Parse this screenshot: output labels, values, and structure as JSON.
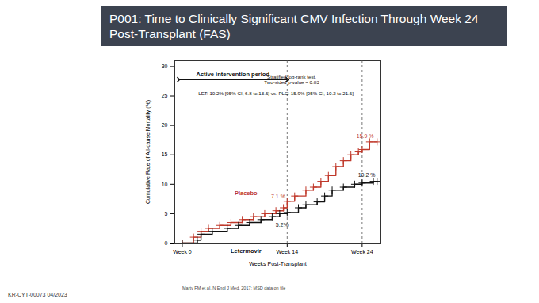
{
  "chart_data": {
    "type": "line",
    "title": "P001: Time to Clinically Significant CMV Infection Through Week 24 Post-Transplant (FAS)",
    "x_label": "Weeks Post-Transplant",
    "y_label": "Cumulative Rate of All-cause Mortality (%)",
    "xlim": [
      -1,
      26.5
    ],
    "xticks": [
      {
        "value": 0,
        "label": "Week 0"
      },
      {
        "value": 14,
        "label": "Week 14"
      },
      {
        "value": 24,
        "label": "Week 24"
      }
    ],
    "ylim": [
      0,
      31
    ],
    "yticks": [
      0,
      5,
      10,
      15,
      20,
      25,
      30
    ],
    "grid": false,
    "line_style": "step",
    "marker": "plus",
    "vlines": [
      14,
      24
    ],
    "period": {
      "text": "Active intervention period",
      "x_range": [
        -0.5,
        14
      ],
      "y": 27.8
    },
    "series": [
      {
        "name": "Placebo",
        "color": "#c0392b",
        "x": [
          0,
          1.5,
          2.5,
          3.5,
          5,
          6.5,
          8,
          9.5,
          11,
          12.5,
          13.5,
          14,
          15,
          16.5,
          17.5,
          18.5,
          19.5,
          20.5,
          21.5,
          22.5,
          23.5,
          24,
          25,
          26
        ],
        "values": [
          0,
          1,
          2,
          2.5,
          3,
          3.5,
          4,
          4.5,
          5,
          5.5,
          6,
          7.1,
          8,
          9,
          9.5,
          10.5,
          11.5,
          13,
          14,
          15,
          15.5,
          15.9,
          17.2,
          17.2
        ]
      },
      {
        "name": "Letermovir",
        "color": "#111111",
        "x": [
          0,
          2,
          2.5,
          4,
          6,
          7.5,
          9,
          10.5,
          12,
          13,
          14,
          15.5,
          16.5,
          18,
          19,
          20,
          21.5,
          23,
          24,
          25.5,
          26
        ],
        "values": [
          0,
          0.5,
          1.5,
          2,
          2.5,
          3,
          3.5,
          4,
          4.5,
          5,
          5.2,
          6,
          6.5,
          7,
          8,
          9,
          9.5,
          10,
          10.2,
          10.5,
          10.5
        ]
      }
    ],
    "series_labels": [
      {
        "series": "Placebo",
        "x": 8.5,
        "y": 9.5
      },
      {
        "series": "Letermovir",
        "x": 8.5,
        "y": -0.3
      }
    ],
    "annotations": [
      {
        "text": "Stratified log-rank test,\nTwo-sided p-value = 0.03",
        "x": 14.6,
        "y": 27.8,
        "series": null
      },
      {
        "text": "LET: 10.2% [95% CI, 6.8 to 13.6] vs. PLC: 15.9% [95% CI, 10.2 to 21.6]",
        "x": 12.5,
        "y": 25.4,
        "series": null
      },
      {
        "text": "7.1 %",
        "x": 12.8,
        "y": 8.0,
        "series": "Placebo"
      },
      {
        "text": "5.2%",
        "x": 13.3,
        "y": 3.1,
        "series": "Letermovir"
      },
      {
        "text": "15.9 %",
        "x": 24.4,
        "y": 18.2,
        "series": "Placebo"
      },
      {
        "text": "10.2 %",
        "x": 24.6,
        "y": 11.6,
        "series": "Letermovir"
      }
    ],
    "footnote": "Marty FM et al. N Engl J Med. 2017; MSD data on file",
    "code": "KR-CYT-00073 04/2023"
  }
}
